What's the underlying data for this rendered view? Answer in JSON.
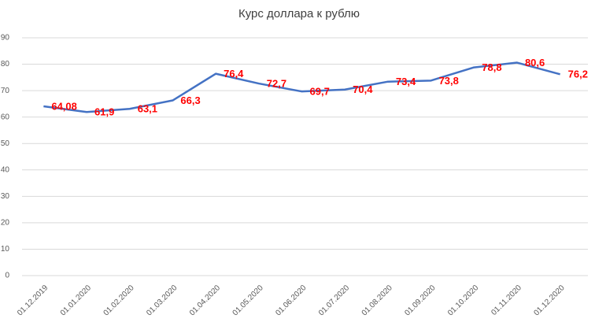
{
  "chart_data": {
    "type": "line",
    "title": "Курс доллара к рублю",
    "categories": [
      "01.12.2019",
      "01.01.2020",
      "01.02.2020",
      "01.03.2020",
      "01.04.2020",
      "01.05.2020",
      "01.06.2020",
      "01.07.2020",
      "01.08.2020",
      "01.09.2020",
      "01.10.2020",
      "01.11.2020",
      "01.12.2020"
    ],
    "values": [
      64.08,
      61.9,
      63.1,
      66.3,
      76.4,
      72.7,
      69.7,
      70.4,
      73.4,
      73.8,
      78.8,
      80.6,
      76.2
    ],
    "value_labels": [
      "64,08",
      "61,9",
      "63,1",
      "66,3",
      "76,4",
      "72,7",
      "69,7",
      "70,4",
      "73,4",
      "73,8",
      "78,8",
      "80,6",
      "76,2"
    ],
    "color": "#4472c4",
    "label_color": "#ff0000",
    "ylim": [
      0,
      90
    ],
    "yticks": [
      0,
      10,
      20,
      30,
      40,
      50,
      60,
      70,
      80,
      90
    ],
    "grid": true
  }
}
